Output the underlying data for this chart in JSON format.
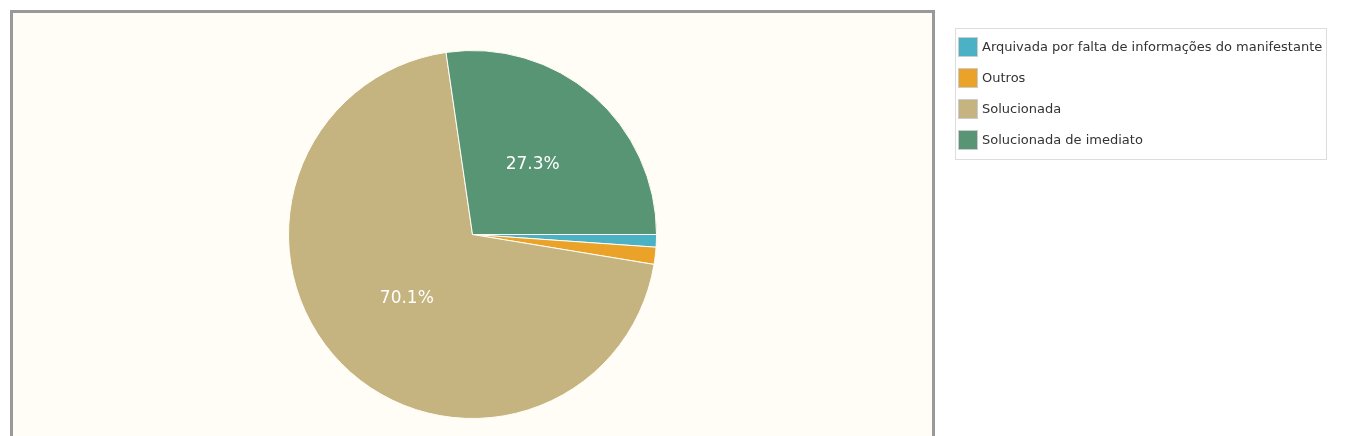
{
  "chart_data": {
    "type": "pie",
    "categories": [
      "Arquivada por falta de informações do manifestante",
      "Outros",
      "Solucionada",
      "Solucionada de imediato"
    ],
    "values": [
      1.1,
      1.5,
      70.1,
      27.3
    ],
    "colors": [
      "#4bb2c5",
      "#eaa228",
      "#c5b47f",
      "#579575"
    ],
    "value_labels": [
      null,
      null,
      "70.1%",
      "27.3%"
    ],
    "legend": "top right"
  }
}
